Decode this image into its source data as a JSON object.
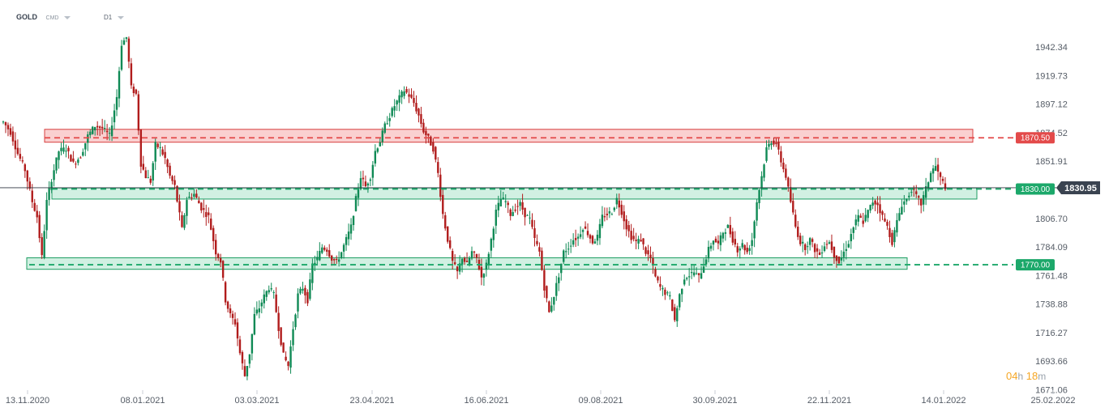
{
  "header": {
    "symbol": "GOLD",
    "source": "CMD",
    "interval": "D1"
  },
  "countdown": {
    "hours": "04",
    "hours_unit": "h",
    "minutes": "18",
    "minutes_unit": "m"
  },
  "colors": {
    "bull": "#0f8a55",
    "bear": "#b11c1c",
    "resistance": "#e34a4a",
    "support": "#1ca86a",
    "price_tag": "#3a4350"
  },
  "chart_data": {
    "type": "candlestick",
    "title": "",
    "xlabel": "",
    "ylabel": "",
    "ylim": [
      1671.06,
      1965.16
    ],
    "y_ticks": [
      1942.34,
      1919.73,
      1897.12,
      1874.52,
      1851.91,
      1829.3,
      1806.7,
      1784.09,
      1761.48,
      1738.88,
      1716.27,
      1693.66,
      1671.06
    ],
    "y_tick_labels": [
      "1942.34",
      "1919.73",
      "1897.12",
      "1874.52",
      "1851.91",
      "",
      "1806.70",
      "1784.09",
      "1761.48",
      "1738.88",
      "1716.27",
      "1693.66",
      "1671.06"
    ],
    "x_ticks": [
      "13.11.2020",
      "08.01.2021",
      "03.03.2021",
      "23.04.2021",
      "16.06.2021",
      "09.08.2021",
      "30.09.2021",
      "22.11.2021",
      "14.01.2022",
      "25.02.2022"
    ],
    "current_price": "1830.95",
    "levels": [
      {
        "value": 1870.5,
        "label": "1870.50",
        "kind": "resistance",
        "zone": [
          1867.0,
          1877.2
        ]
      },
      {
        "value": 1830.0,
        "label": "1830.00",
        "kind": "support",
        "zone": [
          1822.0,
          1830.8
        ]
      },
      {
        "value": 1770.0,
        "label": "1770.00",
        "kind": "support",
        "zone": [
          1766.4,
          1775.5
        ]
      }
    ],
    "price_path": [
      [
        0,
        1883
      ],
      [
        3,
        1875
      ],
      [
        6,
        1858
      ],
      [
        9,
        1845
      ],
      [
        12,
        1820
      ],
      [
        14,
        1808
      ],
      [
        16,
        1776
      ],
      [
        18,
        1820
      ],
      [
        20,
        1838
      ],
      [
        23,
        1860
      ],
      [
        26,
        1862
      ],
      [
        29,
        1850
      ],
      [
        32,
        1856
      ],
      [
        35,
        1872
      ],
      [
        38,
        1880
      ],
      [
        41,
        1878
      ],
      [
        44,
        1872
      ],
      [
        47,
        1903
      ],
      [
        49,
        1945
      ],
      [
        51,
        1950
      ],
      [
        53,
        1910
      ],
      [
        55,
        1905
      ],
      [
        57,
        1850
      ],
      [
        59,
        1840
      ],
      [
        61,
        1836
      ],
      [
        63,
        1865
      ],
      [
        65,
        1862
      ],
      [
        67,
        1854
      ],
      [
        69,
        1840
      ],
      [
        71,
        1832
      ],
      [
        74,
        1798
      ],
      [
        76,
        1822
      ],
      [
        79,
        1826
      ],
      [
        82,
        1815
      ],
      [
        85,
        1808
      ],
      [
        88,
        1780
      ],
      [
        90,
        1773
      ],
      [
        92,
        1742
      ],
      [
        94,
        1730
      ],
      [
        96,
        1724
      ],
      [
        98,
        1700
      ],
      [
        100,
        1682
      ],
      [
        102,
        1700
      ],
      [
        104,
        1730
      ],
      [
        106,
        1736
      ],
      [
        108,
        1745
      ],
      [
        110,
        1752
      ],
      [
        112,
        1746
      ],
      [
        114,
        1720
      ],
      [
        116,
        1698
      ],
      [
        118,
        1690
      ],
      [
        120,
        1720
      ],
      [
        122,
        1746
      ],
      [
        124,
        1752
      ],
      [
        126,
        1742
      ],
      [
        128,
        1770
      ],
      [
        130,
        1775
      ],
      [
        132,
        1784
      ],
      [
        134,
        1782
      ],
      [
        136,
        1775
      ],
      [
        138,
        1772
      ],
      [
        140,
        1780
      ],
      [
        142,
        1790
      ],
      [
        144,
        1800
      ],
      [
        146,
        1822
      ],
      [
        148,
        1840
      ],
      [
        150,
        1832
      ],
      [
        152,
        1840
      ],
      [
        154,
        1860
      ],
      [
        156,
        1868
      ],
      [
        158,
        1880
      ],
      [
        160,
        1888
      ],
      [
        162,
        1896
      ],
      [
        164,
        1902
      ],
      [
        166,
        1908
      ],
      [
        168,
        1904
      ],
      [
        170,
        1898
      ],
      [
        172,
        1888
      ],
      [
        174,
        1876
      ],
      [
        176,
        1870
      ],
      [
        178,
        1862
      ],
      [
        180,
        1842
      ],
      [
        182,
        1810
      ],
      [
        184,
        1790
      ],
      [
        186,
        1772
      ],
      [
        188,
        1764
      ],
      [
        190,
        1776
      ],
      [
        192,
        1770
      ],
      [
        194,
        1780
      ],
      [
        196,
        1775
      ],
      [
        198,
        1760
      ],
      [
        200,
        1770
      ],
      [
        202,
        1790
      ],
      [
        204,
        1812
      ],
      [
        206,
        1822
      ],
      [
        208,
        1820
      ],
      [
        210,
        1810
      ],
      [
        212,
        1815
      ],
      [
        214,
        1818
      ],
      [
        216,
        1810
      ],
      [
        218,
        1806
      ],
      [
        220,
        1790
      ],
      [
        222,
        1780
      ],
      [
        224,
        1752
      ],
      [
        226,
        1732
      ],
      [
        228,
        1746
      ],
      [
        230,
        1762
      ],
      [
        232,
        1780
      ],
      [
        234,
        1784
      ],
      [
        236,
        1790
      ],
      [
        238,
        1792
      ],
      [
        240,
        1800
      ],
      [
        242,
        1795
      ],
      [
        244,
        1788
      ],
      [
        246,
        1792
      ],
      [
        248,
        1808
      ],
      [
        250,
        1810
      ],
      [
        252,
        1812
      ],
      [
        254,
        1822
      ],
      [
        256,
        1812
      ],
      [
        258,
        1800
      ],
      [
        260,
        1792
      ],
      [
        262,
        1788
      ],
      [
        264,
        1790
      ],
      [
        266,
        1780
      ],
      [
        268,
        1775
      ],
      [
        270,
        1760
      ],
      [
        272,
        1752
      ],
      [
        274,
        1748
      ],
      [
        276,
        1744
      ],
      [
        278,
        1726
      ],
      [
        280,
        1746
      ],
      [
        282,
        1760
      ],
      [
        284,
        1762
      ],
      [
        286,
        1764
      ],
      [
        288,
        1760
      ],
      [
        290,
        1770
      ],
      [
        292,
        1782
      ],
      [
        294,
        1790
      ],
      [
        296,
        1786
      ],
      [
        298,
        1796
      ],
      [
        300,
        1800
      ],
      [
        302,
        1790
      ],
      [
        304,
        1782
      ],
      [
        306,
        1786
      ],
      [
        308,
        1780
      ],
      [
        310,
        1790
      ],
      [
        312,
        1820
      ],
      [
        314,
        1840
      ],
      [
        316,
        1862
      ],
      [
        318,
        1868
      ],
      [
        320,
        1866
      ],
      [
        322,
        1852
      ],
      [
        324,
        1840
      ],
      [
        326,
        1820
      ],
      [
        328,
        1800
      ],
      [
        330,
        1788
      ],
      [
        332,
        1784
      ],
      [
        334,
        1790
      ],
      [
        336,
        1782
      ],
      [
        338,
        1778
      ],
      [
        340,
        1786
      ],
      [
        342,
        1788
      ],
      [
        344,
        1778
      ],
      [
        346,
        1772
      ],
      [
        348,
        1780
      ],
      [
        350,
        1788
      ],
      [
        352,
        1800
      ],
      [
        354,
        1808
      ],
      [
        356,
        1804
      ],
      [
        358,
        1812
      ],
      [
        360,
        1820
      ],
      [
        362,
        1818
      ],
      [
        364,
        1808
      ],
      [
        366,
        1800
      ],
      [
        368,
        1788
      ],
      [
        370,
        1804
      ],
      [
        372,
        1818
      ],
      [
        374,
        1822
      ],
      [
        376,
        1830
      ],
      [
        378,
        1824
      ],
      [
        380,
        1818
      ],
      [
        382,
        1830
      ],
      [
        384,
        1843
      ],
      [
        386,
        1848
      ],
      [
        388,
        1838
      ],
      [
        390,
        1832
      ]
    ]
  }
}
